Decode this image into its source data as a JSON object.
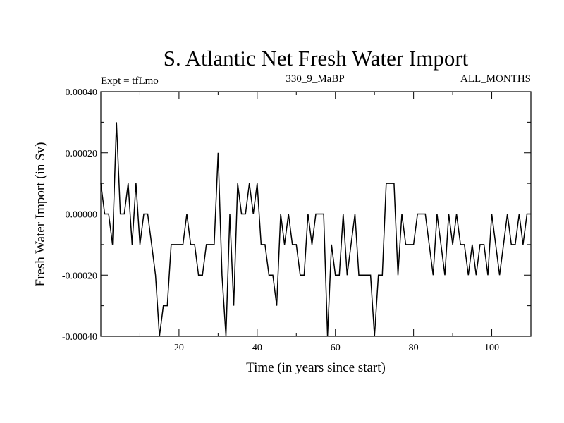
{
  "chart_data": {
    "type": "line",
    "title": "S. Atlantic Net Fresh Water Import",
    "subtitle_left": "Expt = tfLmo",
    "subtitle_center": "330_9_MaBP",
    "subtitle_right": "ALL_MONTHS",
    "xlabel": "Time (in years since start)",
    "ylabel": "Fresh Water Import (in Sv)",
    "xlim": [
      0,
      110
    ],
    "ylim": [
      -0.0004,
      0.0004
    ],
    "x_ticks": [
      20,
      40,
      60,
      80,
      100
    ],
    "x_tick_labels": [
      "20",
      "40",
      "60",
      "80",
      "100"
    ],
    "y_ticks": [
      -0.0004,
      -0.0002,
      0.0,
      0.0002,
      0.0004
    ],
    "y_tick_labels": [
      "-0.00040",
      "-0.00020",
      "0.00000",
      "0.00020",
      "0.00040"
    ],
    "reference_line": {
      "y": 0.0,
      "style": "dashed"
    },
    "series": [
      {
        "name": "net fresh water import",
        "x": [
          0,
          1,
          2,
          3,
          4,
          5,
          6,
          7,
          8,
          9,
          10,
          11,
          12,
          13,
          14,
          15,
          16,
          17,
          18,
          19,
          20,
          21,
          22,
          23,
          24,
          25,
          26,
          27,
          28,
          29,
          30,
          31,
          32,
          33,
          34,
          35,
          36,
          37,
          38,
          39,
          40,
          41,
          42,
          43,
          44,
          45,
          46,
          47,
          48,
          49,
          50,
          51,
          52,
          53,
          54,
          55,
          56,
          57,
          58,
          59,
          60,
          61,
          62,
          63,
          64,
          65,
          66,
          67,
          68,
          69,
          70,
          71,
          72,
          73,
          74,
          75,
          76,
          77,
          78,
          79,
          80,
          81,
          82,
          83,
          84,
          85,
          86,
          87,
          88,
          89,
          90,
          91,
          92,
          93,
          94,
          95,
          96,
          97,
          98,
          99,
          100,
          101,
          102,
          103,
          104,
          105,
          106,
          107,
          108,
          109,
          110
        ],
        "y": [
          0.0001,
          0.0,
          0.0,
          -0.0001,
          0.0003,
          0.0,
          0.0,
          0.0001,
          -0.0001,
          0.0001,
          -0.0001,
          0.0,
          0.0,
          -0.0001,
          -0.0002,
          -0.0004,
          -0.0003,
          -0.0003,
          -0.0001,
          -0.0001,
          -0.0001,
          -0.0001,
          0.0,
          -0.0001,
          -0.0001,
          -0.0002,
          -0.0002,
          -0.0001,
          -0.0001,
          -0.0001,
          0.0002,
          -0.0002,
          -0.0004,
          0.0,
          -0.0003,
          0.0001,
          0.0,
          0.0,
          0.0001,
          0.0,
          0.0001,
          -0.0001,
          -0.0001,
          -0.0002,
          -0.0002,
          -0.0003,
          0.0,
          -0.0001,
          0.0,
          -0.0001,
          -0.0001,
          -0.0002,
          -0.0002,
          0.0,
          -0.0001,
          0.0,
          0.0,
          0.0,
          -0.0004,
          -0.0001,
          -0.0002,
          -0.0002,
          0.0,
          -0.0002,
          -0.0001,
          0.0,
          -0.0002,
          -0.0002,
          -0.0002,
          -0.0002,
          -0.0004,
          -0.0002,
          -0.0002,
          0.0001,
          0.0001,
          0.0001,
          -0.0002,
          0.0,
          -0.0001,
          -0.0001,
          -0.0001,
          0.0,
          0.0,
          0.0,
          -0.0001,
          -0.0002,
          0.0,
          -0.0001,
          -0.0002,
          0.0,
          -0.0001,
          0.0,
          -0.0001,
          -0.0001,
          -0.0002,
          -0.0001,
          -0.0002,
          -0.0001,
          -0.0001,
          -0.0002,
          0.0,
          -0.0001,
          -0.0002,
          -0.0001,
          0.0,
          -0.0001,
          -0.0001,
          0.0,
          -0.0001,
          0.0,
          0.0
        ]
      }
    ]
  }
}
